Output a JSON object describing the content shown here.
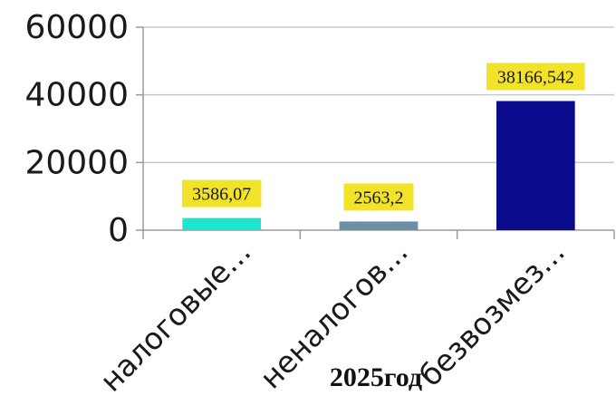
{
  "chart_data": {
    "type": "bar",
    "categories": [
      "налоговые...",
      "неналогов...",
      "безвозмез..."
    ],
    "values": [
      3586.07,
      2563.2,
      38166.542
    ],
    "data_labels": [
      "3586,07",
      "2563,2",
      "38166,542"
    ],
    "colors": [
      "#1de6d0",
      "#6b8fa3",
      "#0a0a8c"
    ],
    "title": "",
    "xlabel": "2025год",
    "ylabel": "",
    "ylim": [
      0,
      60000
    ],
    "yticks": [
      0,
      20000,
      40000,
      60000
    ],
    "ytick_labels": [
      "0",
      "20000",
      "40000",
      "60000"
    ],
    "grid": true,
    "legend": "none",
    "data_label_background": "#f2e22a"
  }
}
